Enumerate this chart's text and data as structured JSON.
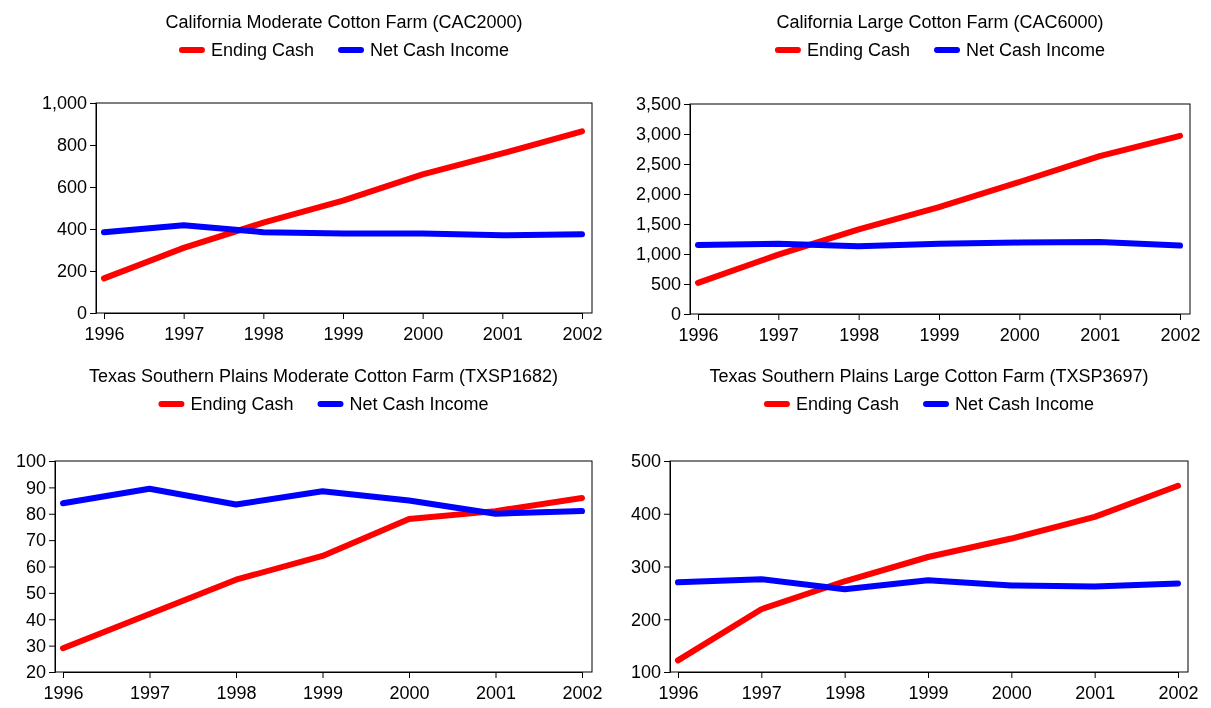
{
  "chart_data": [
    {
      "type": "line",
      "title": "California Moderate Cotton Farm (CAC2000)",
      "categories": [
        "1996",
        "1997",
        "1998",
        "1999",
        "2000",
        "2001",
        "2002"
      ],
      "legend": "top",
      "grid": false,
      "line_style": "solid",
      "marker": "none",
      "ylim": [
        0,
        1000
      ],
      "yticks": [
        0,
        200,
        400,
        600,
        800,
        {
          "value": 1000,
          "label": "1,000"
        }
      ],
      "series": [
        {
          "name": "Ending Cash",
          "color": "#ff0000",
          "values": [
            165,
            310,
            430,
            535,
            660,
            760,
            865
          ]
        },
        {
          "name": "Net Cash Income",
          "color": "#0000ff",
          "values": [
            385,
            418,
            385,
            378,
            378,
            370,
            375
          ]
        }
      ]
    },
    {
      "type": "line",
      "title": "California Large Cotton Farm (CAC6000)",
      "categories": [
        "1996",
        "1997",
        "1998",
        "1999",
        "2000",
        "2001",
        "2002"
      ],
      "legend": "top",
      "grid": false,
      "line_style": "solid",
      "marker": "none",
      "ylim": [
        0,
        3500
      ],
      "yticks": [
        0,
        500,
        {
          "value": 1000,
          "label": "1,000"
        },
        {
          "value": 1500,
          "label": "1,500"
        },
        {
          "value": 2000,
          "label": "2,000"
        },
        {
          "value": 2500,
          "label": "2,500"
        },
        {
          "value": 3000,
          "label": "3,000"
        },
        {
          "value": 3500,
          "label": "3,500"
        }
      ],
      "series": [
        {
          "name": "Ending Cash",
          "color": "#ff0000",
          "values": [
            520,
            990,
            1410,
            1780,
            2200,
            2630,
            2970
          ]
        },
        {
          "name": "Net Cash Income",
          "color": "#0000ff",
          "values": [
            1150,
            1170,
            1130,
            1170,
            1190,
            1200,
            1140
          ]
        }
      ]
    },
    {
      "type": "line",
      "title": "Texas Southern Plains Moderate Cotton Farm (TXSP1682)",
      "categories": [
        "1996",
        "1997",
        "1998",
        "1999",
        "2000",
        "2001",
        "2002"
      ],
      "legend": "top",
      "grid": false,
      "line_style": "solid",
      "marker": "none",
      "ylim": [
        20,
        100
      ],
      "yticks": [
        20,
        30,
        40,
        50,
        60,
        70,
        80,
        90,
        100
      ],
      "series": [
        {
          "name": "Ending Cash",
          "color": "#ff0000",
          "values": [
            29,
            42,
            55,
            64,
            78,
            81,
            86
          ]
        },
        {
          "name": "Net Cash Income",
          "color": "#0000ff",
          "values": [
            84,
            89.5,
            83.5,
            88.5,
            85,
            80,
            81
          ]
        }
      ]
    },
    {
      "type": "line",
      "title": "Texas Southern Plains Large Cotton Farm (TXSP3697)",
      "categories": [
        "1996",
        "1997",
        "1998",
        "1999",
        "2000",
        "2001",
        "2002"
      ],
      "legend": "top",
      "grid": false,
      "line_style": "solid",
      "marker": "none",
      "ylim": [
        100,
        500
      ],
      "yticks": [
        100,
        200,
        300,
        400,
        500
      ],
      "series": [
        {
          "name": "Ending Cash",
          "color": "#ff0000",
          "values": [
            122,
            219,
            272,
            318,
            353,
            394,
            453
          ]
        },
        {
          "name": "Net Cash Income",
          "color": "#0000ff",
          "values": [
            270,
            276,
            257,
            274,
            264,
            262,
            268
          ]
        }
      ]
    }
  ]
}
